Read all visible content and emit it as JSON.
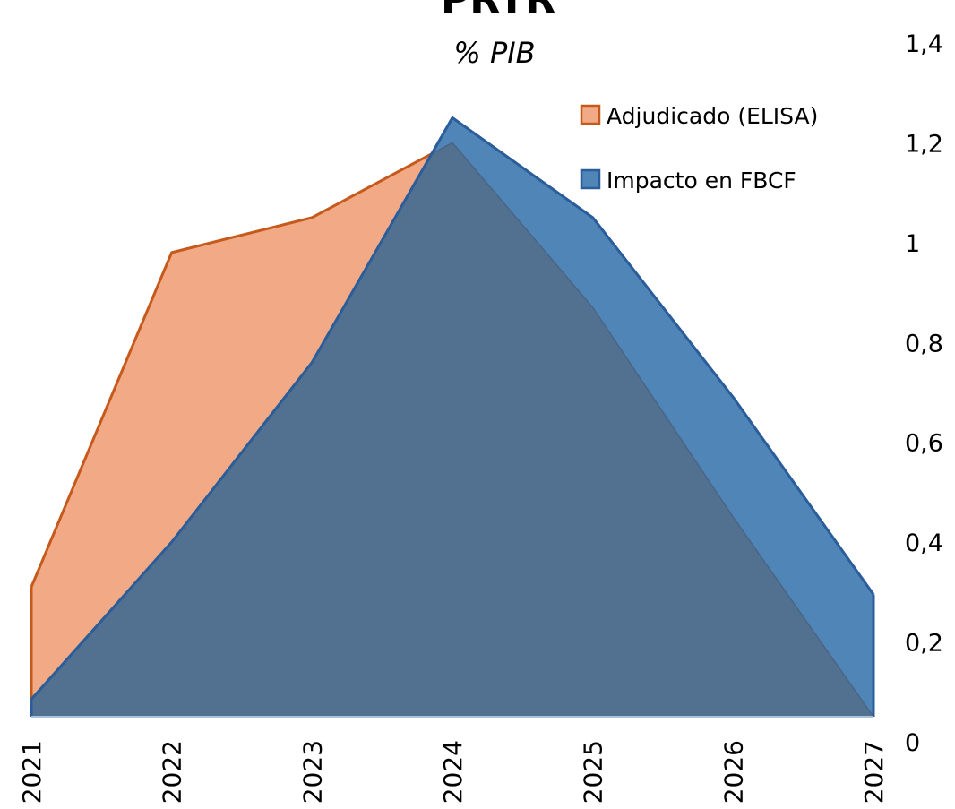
{
  "chart_data": {
    "type": "area",
    "title": "PRTR",
    "subtitle": "% PIB",
    "categories": [
      "2021",
      "2022",
      "2023",
      "2024",
      "2025",
      "2026",
      "2027"
    ],
    "series": [
      {
        "name": "Adjudicado (ELISA)",
        "color": "#f2a985",
        "line_color": "#c55a1c",
        "values": [
          0.26,
          0.93,
          1.0,
          1.15,
          0.82,
          0.4,
          0
        ]
      },
      {
        "name": "Impacto en FBCF",
        "color": "#5085b8",
        "line_color": "#2a5d99",
        "values": [
          0.035,
          0.35,
          0.71,
          1.2,
          1.0,
          0.64,
          0.245
        ]
      }
    ],
    "ylim": [
      0,
      1.4
    ],
    "yticks": [
      0,
      {
        "value": 0.2,
        "label": "0,2"
      },
      {
        "value": 0.4,
        "label": "0,4"
      },
      {
        "value": 0.6,
        "label": "0,6"
      },
      {
        "value": 0.8,
        "label": "0,8"
      },
      1,
      {
        "value": 1.2,
        "label": "1,2"
      },
      {
        "value": 1.4,
        "label": "1,4"
      }
    ],
    "y_axis_side": "right",
    "legend": "upper right",
    "grid": false
  }
}
